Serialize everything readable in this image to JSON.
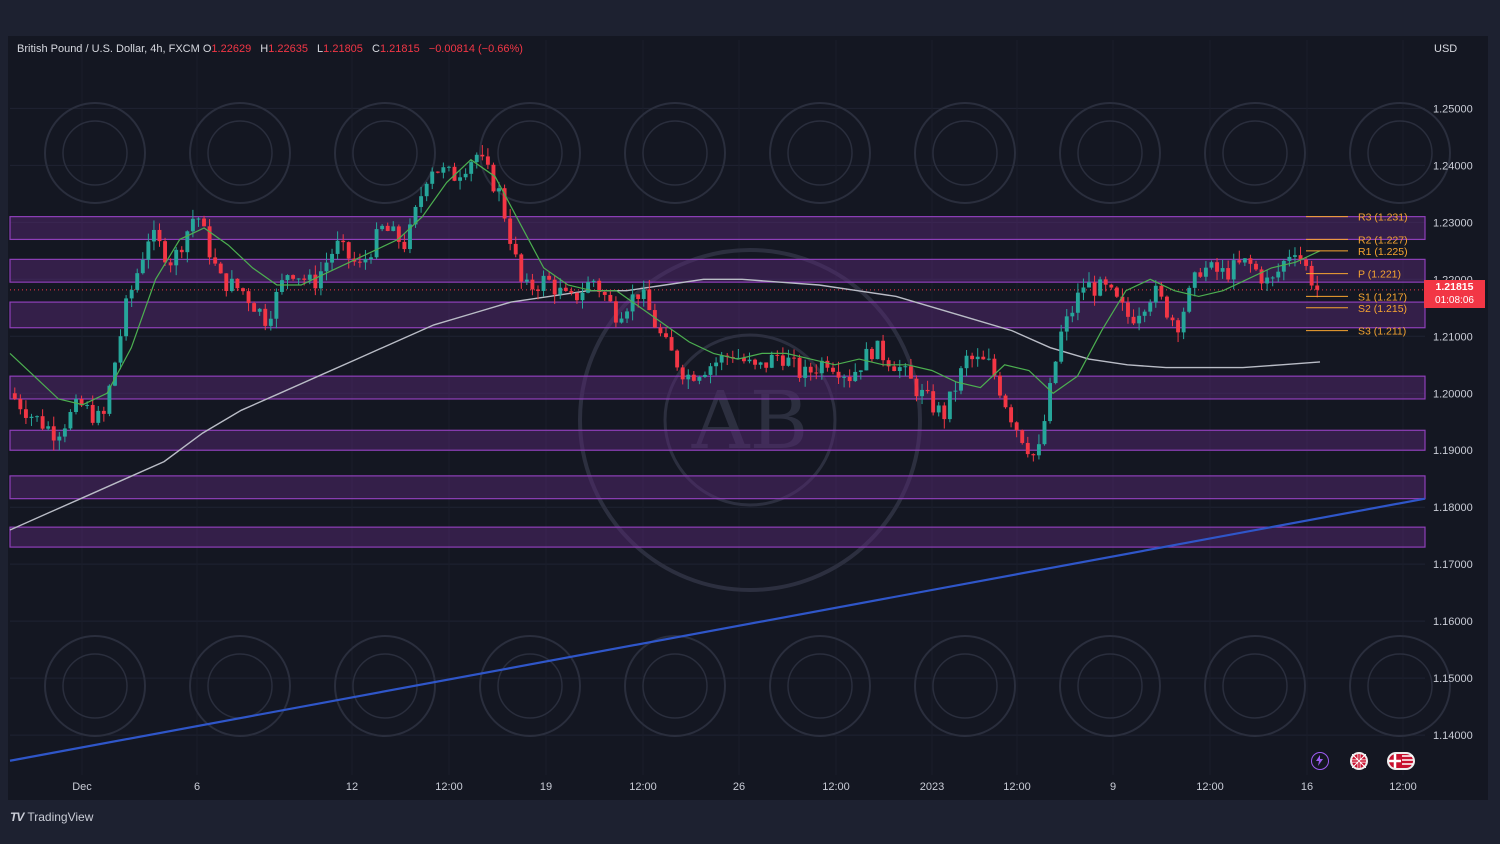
{
  "header": {
    "symbol": "British Pound / U.S. Dollar, 4h, FXCM",
    "open_label": "O",
    "open": "1.22629",
    "high_label": "H",
    "high": "1.22635",
    "low_label": "L",
    "low": "1.21805",
    "close_label": "C",
    "close": "1.21815",
    "change": "−0.00814 (−0.66%)"
  },
  "axis_currency": "USD",
  "last_price": {
    "value": "1.21815",
    "countdown": "01:08:06"
  },
  "footer": {
    "brand_mark": "TV",
    "brand": "TradingView"
  },
  "watermark": {
    "text": "AB"
  },
  "icons": [
    "lightning-icon",
    "uk-flag-icon",
    "uk-us-flags-icon"
  ],
  "colors": {
    "up": "#26a69a",
    "down": "#f23645",
    "zone": "#5b2a7a",
    "trend": "#2f56c9",
    "ma_fast": "#4caf50",
    "ma_slow": "#b9bcc6",
    "pivot": "#f7a531"
  },
  "chart_data": {
    "type": "candlestick",
    "title": "British Pound / U.S. Dollar, 4h, FXCM",
    "y_axis": {
      "ticks": [
        "1.25000",
        "1.24000",
        "1.23000",
        "1.22000",
        "1.21000",
        "1.20000",
        "1.19000",
        "1.18000",
        "1.17000",
        "1.16000",
        "1.15000",
        "1.14000"
      ],
      "range": [
        1.133,
        1.262
      ]
    },
    "x_axis": {
      "ticks": [
        "Dec",
        "6",
        "12",
        "12:00",
        "19",
        "12:00",
        "26",
        "12:00",
        "2023",
        "12:00",
        "9",
        "12:00",
        "16",
        "12:00"
      ]
    },
    "pivots": [
      {
        "label": "R3 (1.231)",
        "value": 1.231
      },
      {
        "label": "R2 (1.227)",
        "value": 1.227
      },
      {
        "label": "R1 (1.225)",
        "value": 1.225
      },
      {
        "label": "P (1.221)",
        "value": 1.221
      },
      {
        "label": "S1 (1.217)",
        "value": 1.217
      },
      {
        "label": "S2 (1.215)",
        "value": 1.215
      },
      {
        "label": "S3 (1.211)",
        "value": 1.211
      }
    ],
    "zones": [
      [
        1.227,
        1.231
      ],
      [
        1.2195,
        1.2235
      ],
      [
        1.2115,
        1.216
      ],
      [
        1.199,
        1.203
      ],
      [
        1.19,
        1.1935
      ],
      [
        1.1815,
        1.1855
      ],
      [
        1.173,
        1.1765
      ]
    ],
    "trendline": {
      "from": [
        0,
        1.1355
      ],
      "to": [
        1,
        1.1815
      ]
    },
    "close_path": [
      1.2,
      1.196,
      1.193,
      1.198,
      1.195,
      1.215,
      1.228,
      1.223,
      1.232,
      1.22,
      1.218,
      1.213,
      1.222,
      1.219,
      1.226,
      1.222,
      1.229,
      1.226,
      1.24,
      1.238,
      1.242,
      1.235,
      1.218,
      1.22,
      1.216,
      1.22,
      1.214,
      1.218,
      1.209,
      1.203,
      1.205,
      1.207,
      1.204,
      1.207,
      1.203,
      1.206,
      1.203,
      1.208,
      1.205,
      1.2,
      1.196,
      1.206,
      1.205,
      1.195,
      1.188,
      1.21,
      1.219,
      1.218,
      1.213,
      1.218,
      1.212,
      1.222,
      1.221,
      1.223,
      1.219,
      1.226,
      1.2182
    ],
    "ma_fast": [
      1.207,
      1.203,
      1.199,
      1.198,
      1.2,
      1.208,
      1.22,
      1.227,
      1.229,
      1.226,
      1.222,
      1.219,
      1.219,
      1.221,
      1.223,
      1.225,
      1.227,
      1.231,
      1.237,
      1.241,
      1.238,
      1.23,
      1.222,
      1.219,
      1.218,
      1.218,
      1.215,
      1.212,
      1.209,
      1.207,
      1.206,
      1.207,
      1.207,
      1.206,
      1.205,
      1.206,
      1.205,
      1.205,
      1.204,
      1.202,
      1.201,
      1.205,
      1.204,
      1.2,
      1.203,
      1.211,
      1.218,
      1.22,
      1.218,
      1.217,
      1.218,
      1.22,
      1.222,
      1.223,
      1.225
    ],
    "ma_slow": [
      1.176,
      1.179,
      1.182,
      1.185,
      1.188,
      1.193,
      1.197,
      1.2,
      1.203,
      1.206,
      1.209,
      1.212,
      1.214,
      1.216,
      1.217,
      1.218,
      1.218,
      1.219,
      1.22,
      1.22,
      1.2195,
      1.219,
      1.218,
      1.217,
      1.215,
      1.213,
      1.211,
      1.208,
      1.206,
      1.205,
      1.2045,
      1.2045,
      1.2045,
      1.205,
      1.2055
    ]
  }
}
